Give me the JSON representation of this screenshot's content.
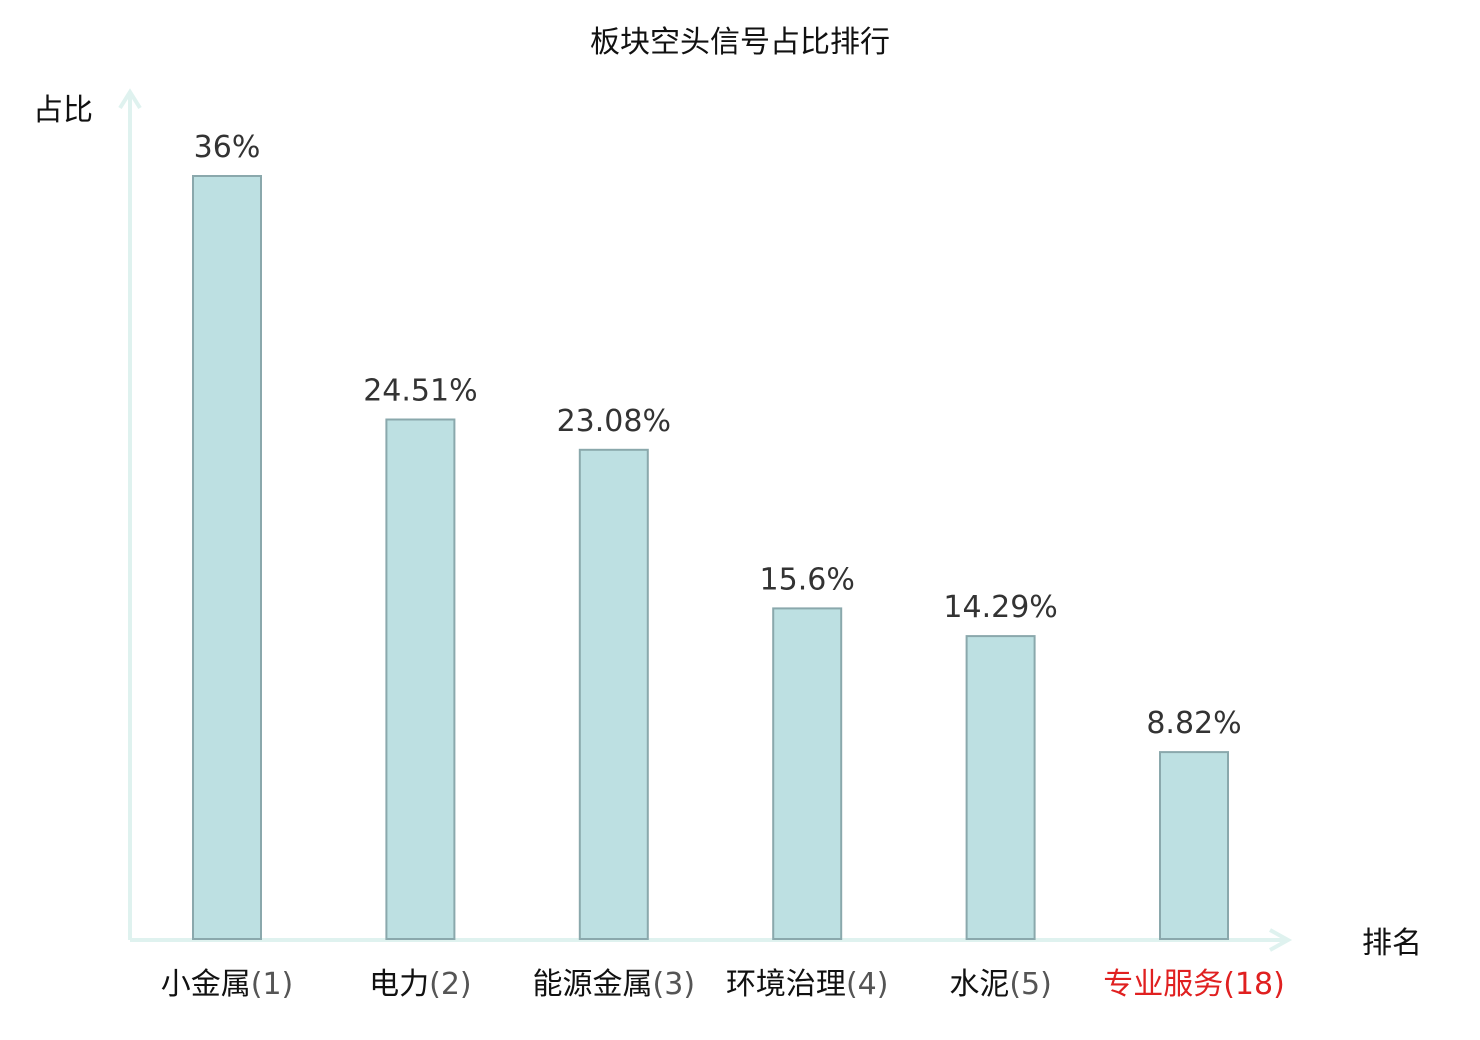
{
  "chart_data": {
    "type": "bar",
    "title": "板块空头信号占比排行",
    "ylabel": "占比",
    "xlabel": "排名",
    "categories": [
      {
        "name": "小金属",
        "rank": "(1)",
        "highlight": false
      },
      {
        "name": "电力",
        "rank": "(2)",
        "highlight": false
      },
      {
        "name": "能源金属",
        "rank": "(3)",
        "highlight": false
      },
      {
        "name": "环境治理",
        "rank": "(4)",
        "highlight": false
      },
      {
        "name": "水泥",
        "rank": "(5)",
        "highlight": false
      },
      {
        "name": "专业服务",
        "rank": "(18)",
        "highlight": true
      }
    ],
    "values": [
      36,
      24.51,
      23.08,
      15.6,
      14.29,
      8.82
    ],
    "value_labels": [
      "36%",
      "24.51%",
      "23.08%",
      "15.6%",
      "14.29%",
      "8.82%"
    ],
    "ylim": [
      0,
      36
    ],
    "grid": false,
    "colors": {
      "bar_fill": "#bde0e2",
      "bar_stroke": "#8aa8ac",
      "axis": "#dff2ef",
      "highlight_text": "#e02020",
      "category_text": "#111111",
      "rank_text": "#555555"
    }
  }
}
